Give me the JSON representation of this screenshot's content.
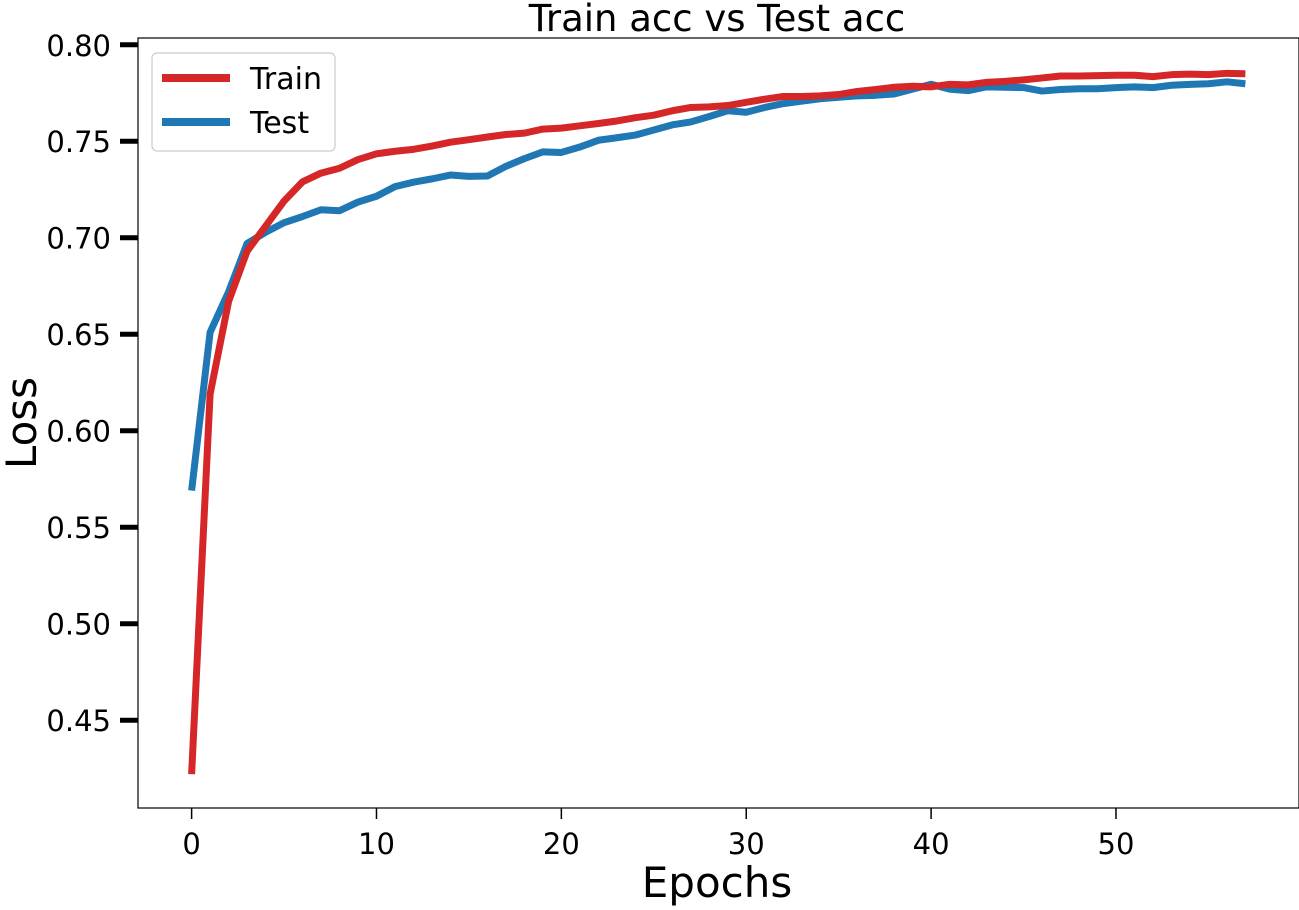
{
  "chart_data": {
    "type": "line",
    "title": "Train acc vs Test acc",
    "xlabel": "Epochs",
    "ylabel": "Loss",
    "xlim": [
      -2.9,
      59.9
    ],
    "ylim": [
      0.4045,
      0.8035
    ],
    "xticks": [
      0,
      10,
      20,
      30,
      40,
      50
    ],
    "xtick_labels": [
      "0",
      "10",
      "20",
      "30",
      "40",
      "50"
    ],
    "yticks": [
      0.45,
      0.5,
      0.55,
      0.6,
      0.65,
      0.7,
      0.75,
      0.8
    ],
    "ytick_labels": [
      "0.45",
      "0.50",
      "0.55",
      "0.60",
      "0.65",
      "0.70",
      "0.75",
      "0.80"
    ],
    "grid": false,
    "legend_position": "top-left",
    "x": [
      0,
      1,
      2,
      3,
      4,
      5,
      6,
      7,
      8,
      9,
      10,
      11,
      12,
      13,
      14,
      15,
      16,
      17,
      18,
      19,
      20,
      21,
      22,
      23,
      24,
      25,
      26,
      27,
      28,
      29,
      30,
      31,
      32,
      33,
      34,
      35,
      36,
      37,
      38,
      39,
      40,
      41,
      42,
      43,
      44,
      45,
      46,
      47,
      48,
      49,
      50,
      51,
      52,
      53,
      54,
      55,
      56,
      57
    ],
    "series": [
      {
        "name": "Train",
        "color": "#d62728",
        "values": [
          0.422,
          0.619,
          0.667,
          0.693,
          0.706,
          0.719,
          0.729,
          0.7335,
          0.736,
          0.7405,
          0.7435,
          0.7448,
          0.7458,
          0.7475,
          0.7495,
          0.7508,
          0.7522,
          0.7535,
          0.7542,
          0.7563,
          0.7568,
          0.758,
          0.7592,
          0.7605,
          0.7622,
          0.7635,
          0.7658,
          0.7675,
          0.7678,
          0.7685,
          0.7702,
          0.7718,
          0.7732,
          0.7732,
          0.7735,
          0.7742,
          0.7758,
          0.7768,
          0.778,
          0.7785,
          0.7782,
          0.7795,
          0.7792,
          0.7805,
          0.781,
          0.7818,
          0.7828,
          0.7838,
          0.7838,
          0.784,
          0.7842,
          0.7842,
          0.7835,
          0.7845,
          0.7848,
          0.7845,
          0.7852,
          0.785
        ]
      },
      {
        "name": "Test",
        "color": "#1f77b4",
        "values": [
          0.569,
          0.651,
          0.672,
          0.697,
          0.7028,
          0.7078,
          0.711,
          0.7145,
          0.714,
          0.7185,
          0.7215,
          0.7265,
          0.7288,
          0.7305,
          0.7325,
          0.7318,
          0.732,
          0.737,
          0.741,
          0.7445,
          0.7442,
          0.747,
          0.7505,
          0.7518,
          0.7532,
          0.7558,
          0.7585,
          0.76,
          0.7628,
          0.7658,
          0.765,
          0.7675,
          0.7695,
          0.7708,
          0.772,
          0.7728,
          0.7735,
          0.7738,
          0.7745,
          0.777,
          0.7795,
          0.777,
          0.7762,
          0.7782,
          0.778,
          0.7778,
          0.776,
          0.7768,
          0.7772,
          0.7772,
          0.7778,
          0.7782,
          0.7778,
          0.779,
          0.7795,
          0.7798,
          0.7808,
          0.7798
        ]
      }
    ]
  }
}
